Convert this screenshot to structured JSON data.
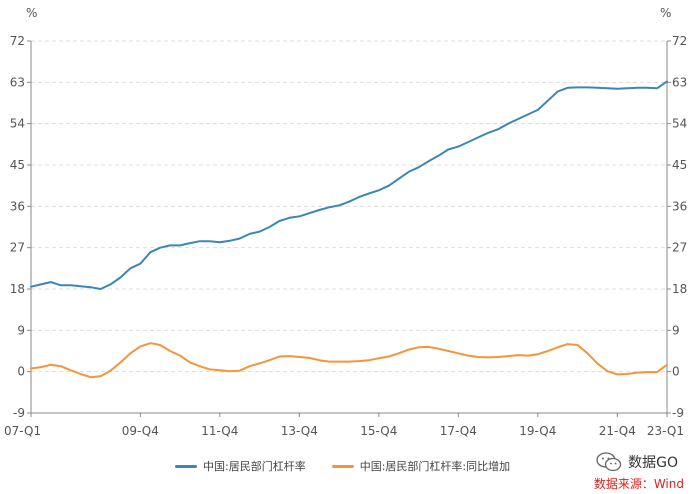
{
  "chart_data": {
    "type": "line",
    "title": "",
    "y_unit_left": "%",
    "y_unit_right": "%",
    "ylim": [
      -9,
      72
    ],
    "yticks": [
      -9,
      0,
      9,
      18,
      27,
      36,
      45,
      54,
      63,
      72
    ],
    "x_tick_labels": [
      {
        "label": "07-Q1",
        "index": 0
      },
      {
        "label": "09-Q4",
        "index": 11
      },
      {
        "label": "11-Q4",
        "index": 19
      },
      {
        "label": "13-Q4",
        "index": 27
      },
      {
        "label": "15-Q4",
        "index": 35
      },
      {
        "label": "17-Q4",
        "index": 43
      },
      {
        "label": "19-Q4",
        "index": 51
      },
      {
        "label": "21-Q4",
        "index": 59
      },
      {
        "label": "23-Q1",
        "index": 64
      }
    ],
    "series": [
      {
        "name": "中国:居民部门杠杆率",
        "color": "#3a87b5",
        "values": [
          18.5,
          19.0,
          19.5,
          18.8,
          18.8,
          18.6,
          18.4,
          18.0,
          19.0,
          20.5,
          22.5,
          23.5,
          26.0,
          27.0,
          27.5,
          27.5,
          28.0,
          28.4,
          28.4,
          28.2,
          28.5,
          29.0,
          30.0,
          30.5,
          31.5,
          32.8,
          33.5,
          33.8,
          34.5,
          35.2,
          35.8,
          36.2,
          37.0,
          38.0,
          38.8,
          39.5,
          40.5,
          42.0,
          43.5,
          44.5,
          45.8,
          47.0,
          48.4,
          49.0,
          50.0,
          51.0,
          52.0,
          52.8,
          54.0,
          55.0,
          56.0,
          57.0,
          59.0,
          61.0,
          61.8,
          61.9,
          61.9,
          61.8,
          61.7,
          61.6,
          61.7,
          61.8,
          61.8,
          61.7,
          63.2
        ]
      },
      {
        "name": "中国:居民部门杠杆率:同比增加",
        "color": "#f5943a",
        "values": [
          0.7,
          1.0,
          1.5,
          1.2,
          0.3,
          -0.5,
          -1.2,
          -1.0,
          0.2,
          2.0,
          4.0,
          5.5,
          6.2,
          5.8,
          4.5,
          3.5,
          2.0,
          1.2,
          0.5,
          0.3,
          0.1,
          0.2,
          1.2,
          1.8,
          2.5,
          3.3,
          3.4,
          3.2,
          3.0,
          2.5,
          2.2,
          2.2,
          2.2,
          2.3,
          2.5,
          2.9,
          3.3,
          4.0,
          4.8,
          5.3,
          5.4,
          5.0,
          4.5,
          4.0,
          3.5,
          3.2,
          3.1,
          3.2,
          3.4,
          3.6,
          3.5,
          3.8,
          4.5,
          5.3,
          6.0,
          5.8,
          4.0,
          1.8,
          0.1,
          -0.6,
          -0.5,
          -0.2,
          -0.1,
          -0.1,
          1.5
        ]
      }
    ]
  },
  "legend": {
    "series_1": "中国:居民部门杠杆率",
    "series_2": "中国:居民部门杠杆率:同比增加"
  },
  "watermark": {
    "brand": "数据GO",
    "source": "数据来源：Wind"
  },
  "colors": {
    "grid": "#dddddd",
    "axis": "#888888",
    "source_text": "#e02020"
  }
}
